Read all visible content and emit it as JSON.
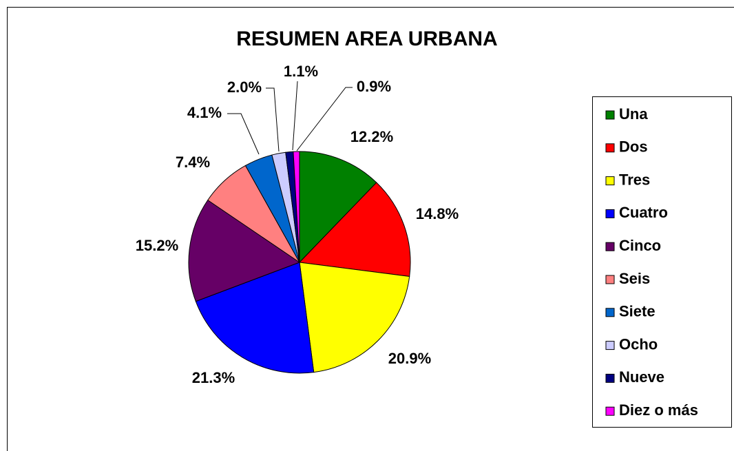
{
  "chart_data": {
    "type": "pie",
    "title": "RESUMEN AREA URBANA",
    "categories": [
      "Una",
      "Dos",
      "Tres",
      "Cuatro",
      "Cinco",
      "Seis",
      "Siete",
      "Ocho",
      "Nueve",
      "Diez o más"
    ],
    "values": [
      12.2,
      14.8,
      20.9,
      21.3,
      15.2,
      7.4,
      4.1,
      2.0,
      1.1,
      0.9
    ],
    "value_labels": [
      "12.2%",
      "14.8%",
      "20.9%",
      "21.3%",
      "15.2%",
      "7.4%",
      "4.1%",
      "2.0%",
      "1.1%",
      "0.9%"
    ],
    "colors": [
      "#008000",
      "#ff0000",
      "#ffff00",
      "#0000ff",
      "#660066",
      "#ff8080",
      "#0066cc",
      "#ccccff",
      "#000080",
      "#ff00ff"
    ],
    "legend": "right"
  }
}
